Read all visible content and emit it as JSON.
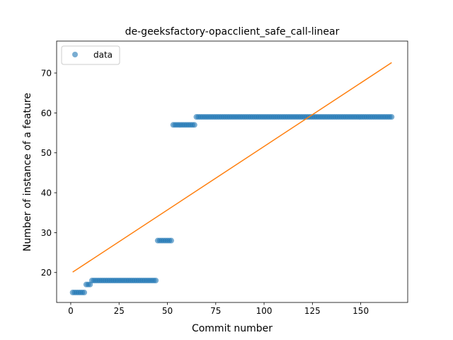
{
  "chart_data": {
    "type": "scatter",
    "title": "de-geeksfactory-opacclient_safe_call-linear",
    "xlabel": "Commit number",
    "ylabel": "Number of instance of a feature",
    "xlim": [
      -7.3,
      174.3
    ],
    "ylim": [
      12.5,
      78.0
    ],
    "xticks": [
      0,
      25,
      50,
      75,
      100,
      125,
      150
    ],
    "yticks": [
      20,
      30,
      40,
      50,
      60,
      70
    ],
    "grid": false,
    "legend": {
      "position": "upper-left",
      "entries": [
        "data"
      ]
    },
    "colors": {
      "data": "#1f77b4",
      "fit": "#ff7f0e"
    },
    "data_segments": [
      {
        "x_start": 1,
        "x_end": 7,
        "y": 15
      },
      {
        "x_start": 8,
        "x_end": 10,
        "y": 17
      },
      {
        "x_start": 11,
        "x_end": 44,
        "y": 18
      },
      {
        "x_start": 45,
        "x_end": 52,
        "y": 28
      },
      {
        "x_start": 53,
        "x_end": 64,
        "y": 57
      },
      {
        "x_start": 65,
        "x_end": 166,
        "y": 59
      }
    ],
    "series": [
      {
        "name": "data",
        "kind": "points"
      },
      {
        "kind": "line",
        "x": [
          1,
          166
        ],
        "y": [
          20.1,
          72.6
        ]
      }
    ]
  }
}
